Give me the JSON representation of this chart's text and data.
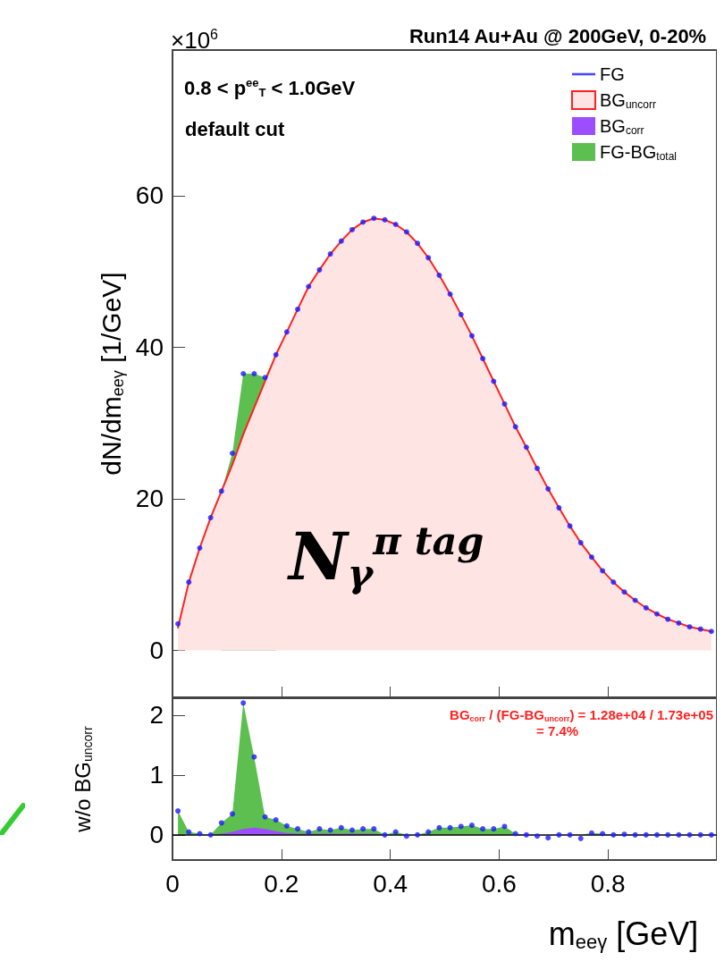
{
  "chart_data": [
    {
      "type": "area",
      "title": "Run14 Au+Au @ 200GeV, 0-20%",
      "ylabel": "dN/dm$_{eeγ}$ [1/GeV]",
      "annotations": [
        "0.8 < p$^{ee}$$_{T}$ < 1.0GeV",
        "default cut",
        "N$_{γ}$$^{π tag}$",
        "×10$^{6}$"
      ],
      "x": [
        0.01,
        0.03,
        0.05,
        0.07,
        0.09,
        0.11,
        0.13,
        0.15,
        0.17,
        0.19,
        0.21,
        0.23,
        0.25,
        0.27,
        0.29,
        0.31,
        0.33,
        0.35,
        0.37,
        0.39,
        0.41,
        0.43,
        0.45,
        0.47,
        0.49,
        0.51,
        0.53,
        0.55,
        0.57,
        0.59,
        0.61,
        0.63,
        0.65,
        0.67,
        0.69,
        0.71,
        0.73,
        0.75,
        0.77,
        0.79,
        0.81,
        0.83,
        0.85,
        0.87,
        0.89,
        0.91,
        0.93,
        0.95,
        0.97,
        0.99
      ],
      "series": [
        {
          "name": "FG",
          "type": "scatter",
          "color": "#1a1aff",
          "marker": "circle",
          "values": [
            3.5,
            9,
            13.5,
            17.5,
            21,
            26,
            36.5,
            36.5,
            36,
            39,
            42,
            45,
            48,
            50.2,
            52.3,
            54,
            55.5,
            56.5,
            57,
            56.8,
            56.2,
            55.2,
            53.7,
            51.8,
            49.5,
            47,
            44.3,
            41.5,
            38.5,
            35.5,
            32.5,
            29.5,
            26.8,
            24,
            21.3,
            18.8,
            16.4,
            14.2,
            12.3,
            10.5,
            9,
            7.7,
            6.6,
            5.6,
            4.8,
            4.1,
            3.6,
            3.1,
            2.8,
            2.5
          ]
        },
        {
          "name": "BG$_{uncorr}$",
          "type": "area",
          "color": "#ff2020",
          "line_style": "solid",
          "values": [
            3,
            9,
            13.5,
            17.5,
            21,
            24.5,
            28.5,
            32,
            35.5,
            39,
            42,
            45,
            48,
            50.2,
            52.3,
            54,
            55.5,
            56.5,
            57,
            56.8,
            56.2,
            55.2,
            53.7,
            51.8,
            49.5,
            47,
            44.3,
            41.5,
            38.5,
            35.5,
            32.5,
            29.5,
            26.8,
            24,
            21.3,
            18.8,
            16.4,
            14.2,
            12.3,
            10.5,
            9,
            7.7,
            6.6,
            5.6,
            4.8,
            4.1,
            3.6,
            3.1,
            2.8,
            2.5
          ]
        },
        {
          "name": "BG$_{corr}$",
          "type": "area",
          "color": "#9b4dff",
          "values": [
            null,
            null,
            null,
            null,
            null,
            null,
            null,
            null,
            null,
            null,
            null,
            null,
            null,
            null,
            null,
            null,
            null,
            null,
            null,
            null,
            null,
            null,
            null,
            null,
            null,
            null,
            null,
            null,
            null,
            null,
            null,
            null,
            null,
            null,
            null,
            null,
            null,
            null,
            null,
            null,
            null,
            null,
            null,
            null,
            null,
            null,
            null,
            null,
            null,
            null
          ]
        },
        {
          "name": "FG-BG$_{total}$",
          "type": "area",
          "color": "#5cbf4f",
          "values": [
            null,
            null,
            null,
            null,
            0,
            1.5,
            8,
            4.5,
            0.5,
            0,
            null,
            null,
            null,
            null,
            null,
            null,
            null,
            null,
            null,
            null,
            null,
            null,
            null,
            null,
            null,
            null,
            null,
            null,
            null,
            null,
            null,
            null,
            null,
            null,
            null,
            null,
            null,
            null,
            null,
            null,
            null,
            null,
            null,
            null,
            null,
            null,
            null,
            null,
            null,
            null
          ]
        }
      ],
      "stacked": true,
      "xlim": [
        0,
        1
      ],
      "ylim": [
        -6.2,
        79.2
      ],
      "xticks": [
        0,
        0.2,
        0.4,
        0.6,
        0.8
      ],
      "yticks": [
        0,
        20,
        40,
        60
      ],
      "tick_labels": "y",
      "grid": false,
      "legend": "top right"
    },
    {
      "type": "area",
      "ylabel": "w/o BG$_{uncorr}$",
      "xlabel": "m$_{eeγ}$ [GeV]",
      "annotations": [
        "BG$_{corr}$ / (FG-BG$_{uncorr}$) = 1.28e+04 / 1.73e+05",
        "= 7.4%"
      ],
      "x": [
        0.01,
        0.03,
        0.05,
        0.07,
        0.09,
        0.11,
        0.13,
        0.15,
        0.17,
        0.19,
        0.21,
        0.23,
        0.25,
        0.27,
        0.29,
        0.31,
        0.33,
        0.35,
        0.37,
        0.39,
        0.41,
        0.43,
        0.45,
        0.47,
        0.49,
        0.51,
        0.53,
        0.55,
        0.57,
        0.59,
        0.61,
        0.63,
        0.65,
        0.67,
        0.69,
        0.71,
        0.73,
        0.75,
        0.77,
        0.79,
        0.81,
        0.83,
        0.85,
        0.87,
        0.89,
        0.91,
        0.93,
        0.95,
        0.97,
        0.99
      ],
      "series": [
        {
          "type": "area",
          "color": "#9b4dff",
          "values": [
            0,
            0,
            0,
            0,
            0.02,
            0.05,
            0.1,
            0.12,
            0.1,
            0.06,
            0.03,
            0.02,
            0.02,
            0.02,
            0.02,
            0.02,
            0.02,
            0.02,
            0.02,
            0,
            0,
            0,
            0,
            0,
            0,
            0,
            0,
            0,
            0,
            0,
            0,
            0,
            0,
            0,
            0,
            0,
            0,
            0,
            0,
            0,
            0,
            0,
            0,
            0,
            0,
            0,
            0,
            0,
            0,
            0
          ]
        },
        {
          "type": "area",
          "color": "#5cbf4f",
          "values": [
            0.4,
            0.05,
            0.02,
            0,
            0.18,
            0.3,
            2.1,
            1.18,
            0.2,
            0.19,
            0.12,
            0.08,
            0.03,
            0.08,
            0.06,
            0.1,
            0.06,
            0.08,
            0.08,
            0,
            0.05,
            0,
            0,
            0.05,
            0.12,
            0.12,
            0.14,
            0.16,
            0.1,
            0.1,
            0.14,
            0.02,
            0,
            0,
            0,
            0,
            0,
            0,
            0.03,
            0.02,
            0,
            0.01,
            0,
            0,
            0,
            0,
            0,
            0,
            0,
            0
          ]
        },
        {
          "type": "scatter",
          "color": "#1a1aff",
          "marker": "circle",
          "values": [
            0.4,
            0.05,
            0.02,
            0,
            0.2,
            0.35,
            2.2,
            1.3,
            0.3,
            0.25,
            0.15,
            0.1,
            0.05,
            0.1,
            0.08,
            0.12,
            0.08,
            0.1,
            0.1,
            0,
            0.05,
            -0.02,
            0,
            0.05,
            0.12,
            0.12,
            0.14,
            0.16,
            0.1,
            0.1,
            0.14,
            0.02,
            0,
            -0.02,
            -0.05,
            0,
            0,
            -0.06,
            0.03,
            0.02,
            0,
            0.01,
            0,
            0,
            0,
            0,
            0,
            0,
            0,
            0
          ]
        }
      ],
      "stacked": true,
      "xlim": [
        0,
        1
      ],
      "ylim": [
        -0.42,
        2.28
      ],
      "xticks": [
        0,
        0.2,
        0.4,
        0.6,
        0.8
      ],
      "yticks": [
        0,
        1,
        2
      ],
      "grid": false,
      "legend": false,
      "ref_lines": [
        {
          "axis": "y",
          "value": 0,
          "color": "#000000"
        }
      ]
    }
  ]
}
